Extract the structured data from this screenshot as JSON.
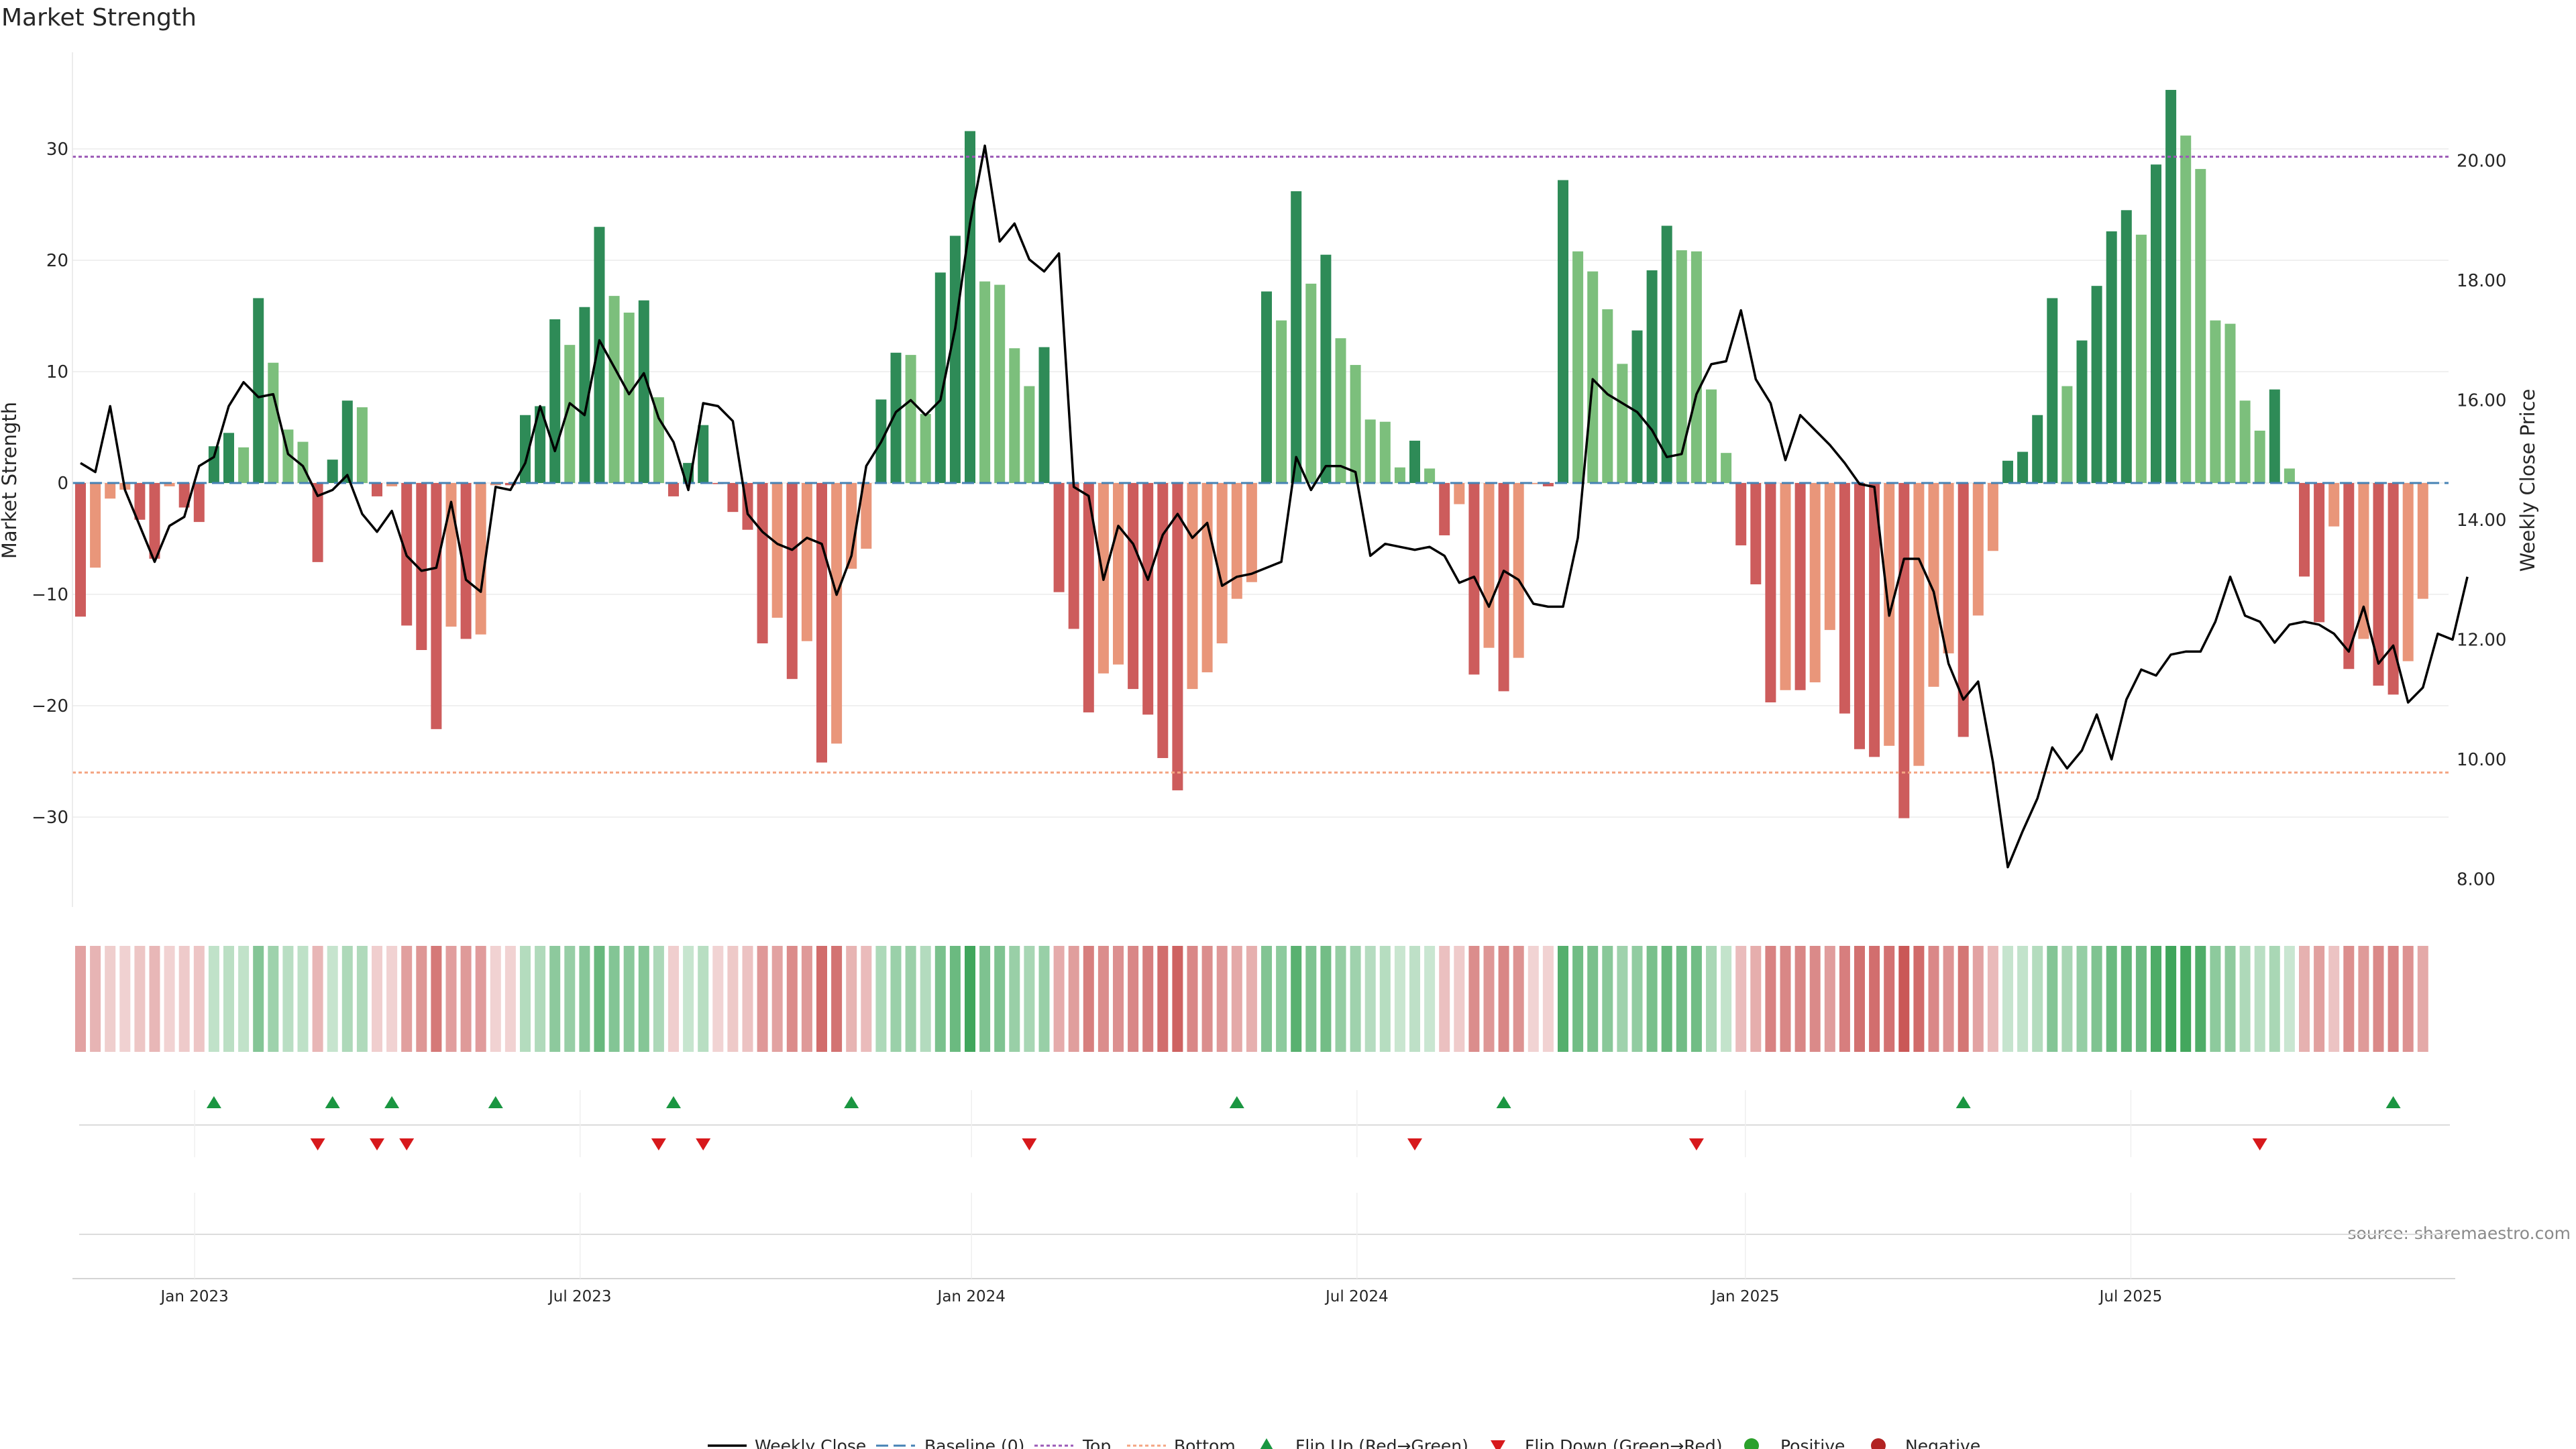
{
  "chart_data": {
    "type": "bar",
    "title": "Market Strength",
    "ylabel": "Market Strength",
    "y2label": "Weekly Close Price",
    "source": "source: sharemaestro.com",
    "ylim": [
      -38.5,
      38.5
    ],
    "y2lim": [
      7.2,
      21.6
    ],
    "yticks": [
      -30,
      -20,
      -10,
      0,
      10,
      20,
      30
    ],
    "y2ticks": [
      8.0,
      10.0,
      12.0,
      14.0,
      16.0,
      18.0,
      20.0
    ],
    "top_level": 29.3,
    "bottom_level": -26,
    "xticks": [
      {
        "label": "Jan 2023",
        "week": 7.7
      },
      {
        "label": "Jul 2023",
        "week": 33.7
      },
      {
        "label": "Jan 2024",
        "week": 60.1
      },
      {
        "label": "Jul 2024",
        "week": 86.1
      },
      {
        "label": "Jan 2025",
        "week": 112.3
      },
      {
        "label": "Jul 2025",
        "week": 138.3
      }
    ],
    "strength": [
      -12,
      -7.6,
      -1.4,
      -0.6,
      -3.3,
      -6.8,
      -0.3,
      -2.2,
      -3.5,
      3.3,
      4.5,
      3.2,
      16.6,
      10.8,
      4.8,
      3.7,
      -7.1,
      2.1,
      7.4,
      6.8,
      -1.2,
      -0.3,
      -12.8,
      -15,
      -22.1,
      -12.9,
      -14,
      -13.6,
      -0.2,
      -0.2,
      6.1,
      6.9,
      14.7,
      12.4,
      15.8,
      23,
      16.8,
      15.3,
      16.4,
      7.7,
      -1.2,
      1.8,
      5.2,
      -0.1,
      -2.6,
      -4.2,
      -14.4,
      -12.1,
      -17.6,
      -14.2,
      -25.1,
      -23.4,
      -7.7,
      -5.9,
      7.5,
      11.7,
      11.5,
      6.2,
      18.9,
      22.2,
      31.6,
      18.1,
      17.8,
      12.1,
      8.7,
      12.2,
      -9.8,
      -13.1,
      -20.6,
      -17.1,
      -16.3,
      -18.5,
      -20.8,
      -24.7,
      -27.6,
      -18.5,
      -17,
      -14.4,
      -10.4,
      -8.9,
      17.2,
      14.6,
      26.2,
      17.9,
      20.5,
      13,
      10.6,
      5.7,
      5.5,
      1.4,
      3.8,
      1.3,
      -4.7,
      -1.9,
      -17.2,
      -14.8,
      -18.7,
      -15.7,
      -0.1,
      -0.3,
      27.2,
      20.8,
      19,
      15.6,
      10.7,
      13.7,
      19.1,
      23.1,
      20.9,
      20.8,
      8.4,
      2.7,
      -5.6,
      -9.1,
      -19.7,
      -18.6,
      -18.6,
      -17.9,
      -13.2,
      -20.7,
      -23.9,
      -24.6,
      -23.6,
      -30.1,
      -25.4,
      -18.3,
      -15.3,
      -22.8,
      -11.9,
      -6.1,
      2,
      2.8,
      6.1,
      16.6,
      8.7,
      12.8,
      17.7,
      22.6,
      24.5,
      22.3,
      28.6,
      35.3,
      31.2,
      28.2,
      14.6,
      14.3,
      7.4,
      4.7,
      8.4,
      1.3,
      -8.4,
      -12.5,
      -3.9,
      -16.7,
      -14,
      -18.2,
      -19,
      -16,
      -10.4
    ],
    "close": [
      14.95,
      14.8,
      15.9,
      14.5,
      13.9,
      13.3,
      13.9,
      14.05,
      14.9,
      15.05,
      15.9,
      16.3,
      16.05,
      16.1,
      15.1,
      14.9,
      14.4,
      14.5,
      14.75,
      14.1,
      13.8,
      14.15,
      13.4,
      13.15,
      13.2,
      14.3,
      13.0,
      12.8,
      14.55,
      14.5,
      14.95,
      15.9,
      15.15,
      15.95,
      15.75,
      17.0,
      16.55,
      16.1,
      16.45,
      15.7,
      15.3,
      14.5,
      15.95,
      15.9,
      15.65,
      14.1,
      13.8,
      13.6,
      13.5,
      13.7,
      13.6,
      12.75,
      13.4,
      14.9,
      15.3,
      15.8,
      16.0,
      15.75,
      16.0,
      17.2,
      18.95,
      20.25,
      18.65,
      18.95,
      18.35,
      18.15,
      18.45,
      14.55,
      14.4,
      13.0,
      13.9,
      13.6,
      13.0,
      13.75,
      14.1,
      13.7,
      13.95,
      12.9,
      13.05,
      13.1,
      13.2,
      13.3,
      15.05,
      14.5,
      14.9,
      14.9,
      14.8,
      13.4,
      13.6,
      13.55,
      13.5,
      13.55,
      13.4,
      12.95,
      13.05,
      12.55,
      13.15,
      13.0,
      12.6,
      12.55,
      12.55,
      13.7,
      16.35,
      16.1,
      15.95,
      15.8,
      15.5,
      15.05,
      15.1,
      16.1,
      16.6,
      16.65,
      17.5,
      16.35,
      15.95,
      15.0,
      15.75,
      15.5,
      15.25,
      14.95,
      14.6,
      14.55,
      12.4,
      13.35,
      13.35,
      12.8,
      11.6,
      11.0,
      11.3,
      9.95,
      8.2,
      8.8,
      9.35,
      10.2,
      9.85,
      10.15,
      10.75,
      10.0,
      11.0,
      11.5,
      11.4,
      11.75,
      11.8,
      11.8,
      12.3,
      13.05,
      12.4,
      12.3,
      11.95,
      12.25,
      12.3,
      12.25,
      12.1,
      11.8,
      12.55,
      11.6,
      11.9,
      10.95,
      11.2,
      12.1,
      12.0,
      13.05
    ],
    "flip_up_weeks": [
      9,
      17,
      21,
      28,
      40,
      52,
      78,
      96,
      127,
      156
    ],
    "flip_down_weeks": [
      16,
      20,
      22,
      39,
      42,
      64,
      90,
      109,
      147
    ],
    "legend": [
      "Weekly Close",
      "Baseline (0)",
      "Top",
      "Bottom",
      "Flip Up (Red→Green)",
      "Flip Down (Green→Red)",
      "Positive",
      "Negative"
    ],
    "colors": {
      "pos_strong": "#2e8b57",
      "pos_light": "#7cbf7c",
      "neg_strong": "#cd5c5c",
      "neg_light": "#e9967a",
      "flip_up": "#1a9641",
      "flip_down": "#d7191c",
      "top_line": "#9b59b6",
      "bottom_line": "#f4a582",
      "baseline": "#4682b4",
      "close_line": "#000000",
      "positive_dot": "#2ca02c",
      "negative_dot": "#b22222"
    }
  }
}
